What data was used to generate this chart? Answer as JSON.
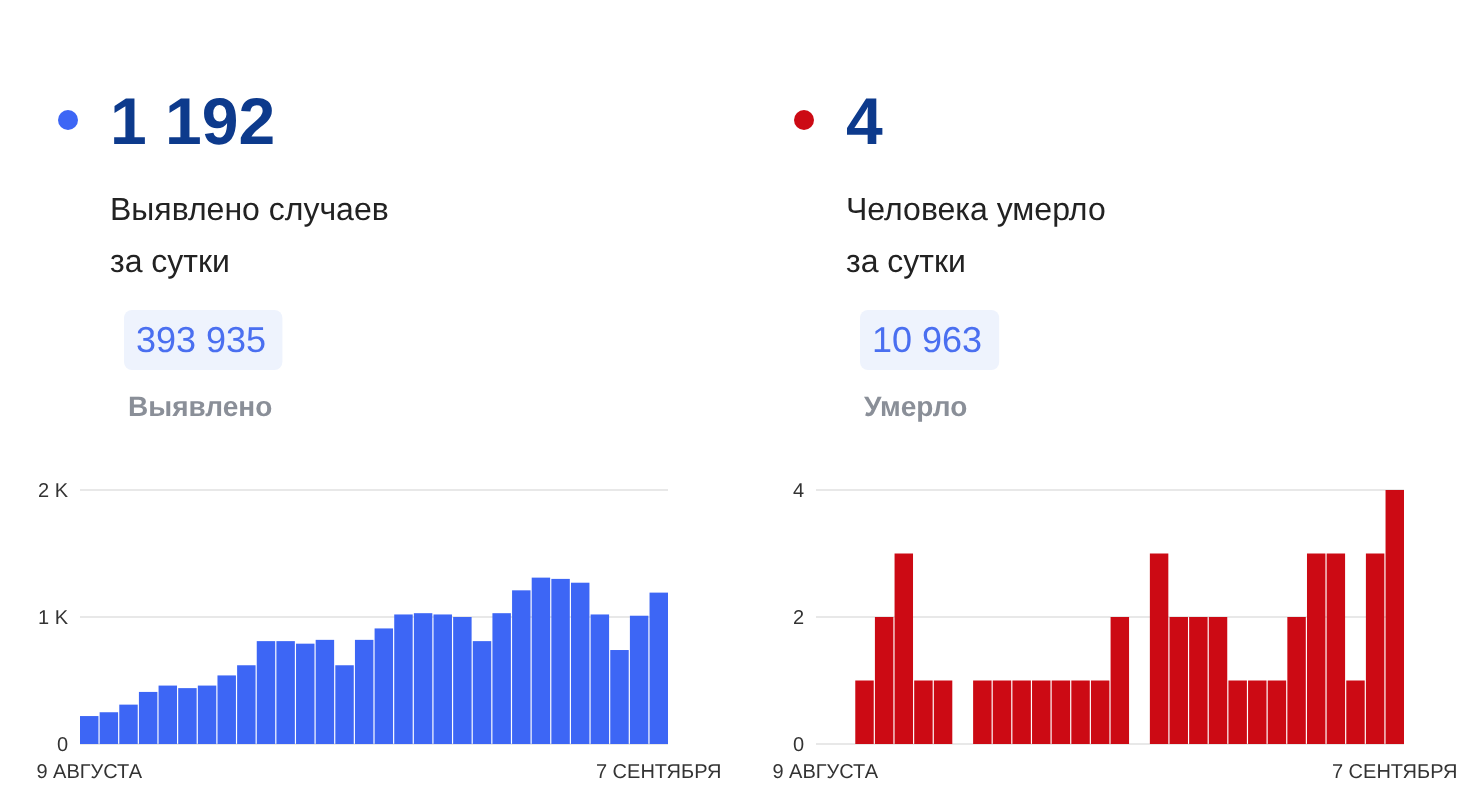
{
  "chart_data": [
    {
      "type": "bar",
      "title": "1 192",
      "subtitle": "Выявлено случаев за сутки",
      "annotations": [
        "393 935",
        "Выявлено"
      ],
      "categories": [
        "9 АВГУСТА",
        null,
        null,
        null,
        null,
        null,
        null,
        null,
        null,
        null,
        null,
        null,
        null,
        null,
        null,
        null,
        null,
        null,
        null,
        null,
        null,
        null,
        null,
        null,
        null,
        null,
        null,
        null,
        null,
        "7 СЕНТЯБРЯ"
      ],
      "series": [
        {
          "color": "#3d66f5",
          "values": [
            220,
            250,
            310,
            410,
            460,
            440,
            460,
            540,
            620,
            810,
            810,
            790,
            820,
            620,
            820,
            910,
            1020,
            1030,
            1020,
            1000,
            810,
            1030,
            1210,
            1310,
            1300,
            1270,
            1020,
            740,
            1010,
            1192
          ]
        }
      ],
      "ylim": [
        0,
        2000
      ],
      "yticks": [
        0,
        {
          "value": 1000,
          "label": "1 K"
        },
        {
          "value": 2000,
          "label": "2 K"
        }
      ],
      "grid": "y"
    },
    {
      "type": "bar",
      "title": "4",
      "subtitle": "Человека умерло за сутки",
      "annotations": [
        "10 963",
        "Умерло"
      ],
      "categories": [
        "9 АВГУСТА",
        null,
        null,
        null,
        null,
        null,
        null,
        null,
        null,
        null,
        null,
        null,
        null,
        null,
        null,
        null,
        null,
        null,
        null,
        null,
        null,
        null,
        null,
        null,
        null,
        null,
        null,
        null,
        null,
        "7 СЕНТЯБРЯ"
      ],
      "series": [
        {
          "color": "#cc0a14",
          "values": [
            0,
            0,
            1,
            2,
            3,
            1,
            1,
            0,
            1,
            1,
            1,
            1,
            1,
            1,
            1,
            2,
            0,
            3,
            2,
            2,
            2,
            1,
            1,
            1,
            2,
            3,
            3,
            1,
            3,
            4
          ]
        }
      ],
      "ylim": [
        0,
        4
      ],
      "yticks": [
        0,
        2,
        4
      ],
      "grid": "y"
    }
  ]
}
